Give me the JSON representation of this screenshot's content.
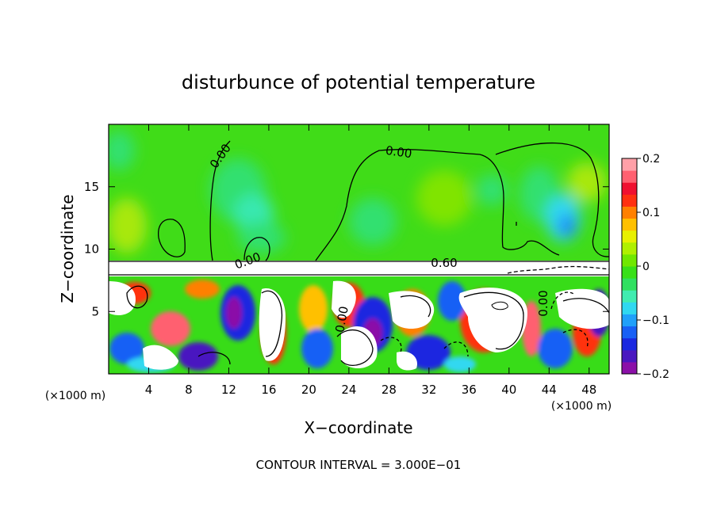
{
  "chart_data": {
    "type": "heatmap",
    "title": "disturbunce of potential temperature",
    "xlabel": "X−coordinate",
    "ylabel": "Z−coordinate",
    "x_unit_left": "(×1000 m)",
    "x_unit_right": "(×1000 m)",
    "xlim": [
      0,
      50
    ],
    "ylim": [
      0,
      20
    ],
    "x_ticks": [
      4,
      8,
      12,
      16,
      20,
      24,
      28,
      32,
      36,
      40,
      44,
      48
    ],
    "x_tick_labels": [
      "4",
      "8",
      "12",
      "16",
      "20",
      "24",
      "28",
      "32",
      "36",
      "40",
      "44",
      "48"
    ],
    "y_ticks": [
      5,
      10,
      15
    ],
    "y_tick_labels": [
      "5",
      "10",
      "15"
    ],
    "colorbar": {
      "range": [
        -0.2,
        0.2
      ],
      "ticks": [
        0.2,
        0.1,
        0,
        -0.1,
        -0.2
      ],
      "tick_labels": [
        "0.2",
        "0.1",
        "0",
        "−0.1",
        "−0.2"
      ],
      "colors": [
        "#8b10a8",
        "#4a17c0",
        "#1a28e0",
        "#1860f5",
        "#20a0fa",
        "#30d8f0",
        "#40ecb0",
        "#30e060",
        "#38e018",
        "#70e800",
        "#b0f000",
        "#e8f000",
        "#ffc000",
        "#ff8000",
        "#ff3010",
        "#f01030",
        "#ff6070",
        "#ffa0a8"
      ]
    },
    "contour_labels": [
      "0.00",
      "0.00",
      "0.00",
      "0.60",
      "0.00",
      "0.00"
    ],
    "grid": false,
    "inversion_layer_z": [
      8.5,
      9.2
    ]
  },
  "footer": {
    "contour_interval": "CONTOUR INTERVAL = 3.000E−01"
  }
}
